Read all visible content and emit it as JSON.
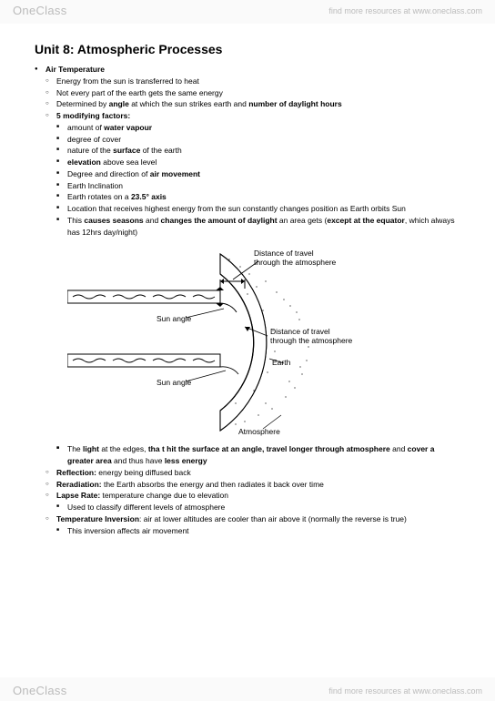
{
  "watermark": {
    "brand_one": "One",
    "brand_rest": "Class",
    "tagline": "find more resources at www.oneclass.com"
  },
  "title": "Unit 8: Atmospheric Processes",
  "bullets": [
    {
      "lvl": 0,
      "html": "<b>Air Temperature</b>"
    },
    {
      "lvl": 1,
      "html": "Energy from the sun is transferred to heat"
    },
    {
      "lvl": 1,
      "html": "Not every part of the earth gets the same energy"
    },
    {
      "lvl": 1,
      "html": "Determined by <b>angle</b> at which the sun strikes earth and <b>number of daylight hours</b>"
    },
    {
      "lvl": 1,
      "html": "<b>5 modifying factors:</b>"
    },
    {
      "lvl": 2,
      "html": "amount of <b>water vapour</b>"
    },
    {
      "lvl": 2,
      "html": "degree of cover"
    },
    {
      "lvl": 2,
      "html": "nature of the <b>surface</b> of the earth"
    },
    {
      "lvl": 2,
      "html": "<b>elevation</b> above sea level"
    },
    {
      "lvl": 2,
      "html": "Degree and direction of <b>air movement</b>"
    },
    {
      "lvl": 2,
      "html": "Earth Inclination"
    },
    {
      "lvl": 2,
      "html": "Earth rotates on a <b>23.5° axis</b>"
    },
    {
      "lvl": 2,
      "html": "Location that receives highest energy from the sun constantly changes position as Earth orbits Sun"
    },
    {
      "lvl": 2,
      "html": "This <b>causes seasons</b> and <b>changes the amount of daylight</b> an area gets (<b>except at the equator</b>, which always has 12hrs day/night)"
    }
  ],
  "bullets_after": [
    {
      "lvl": 2,
      "html": ""
    },
    {
      "lvl": 2,
      "html": "The <b>light</b> at the edges, <b>tha t hit the surface at an angle, travel longer through atmosphere</b> and <b>cover a greater area</b> and thus have <b>less energy</b>"
    },
    {
      "lvl": 1,
      "html": "<b>Reflection:</b> energy being diffused back"
    },
    {
      "lvl": 1,
      "html": "<b>Reradiation:</b> the Earth absorbs the energy and then radiates it back over time"
    },
    {
      "lvl": 1,
      "html": "<b>Lapse Rate:</b> temperature change due to elevation"
    },
    {
      "lvl": 2,
      "html": "Used to classify different levels of atmosphere"
    },
    {
      "lvl": 1,
      "html": "<b>Temperature Inversion</b>: air at lower altitudes are cooler than air above it (normally the reverse is true)"
    },
    {
      "lvl": 2,
      "html": "This inversion affects air movement"
    }
  ],
  "diagram": {
    "labels": {
      "dist_top": "Distance of travel\nthrough the atmosphere",
      "dist_mid": "Distance of travel\nthrough the atmosphere",
      "sun_angle": "Sun angle",
      "earth": "Earth",
      "atmosphere": "Atmosphere"
    },
    "colors": {
      "stroke": "#000000",
      "fill_atm": "#ffffff",
      "bg": "#ffffff"
    },
    "stroke_width": 1.2,
    "band_height": 14,
    "earth_radius": 95,
    "atm_radius": 118
  }
}
